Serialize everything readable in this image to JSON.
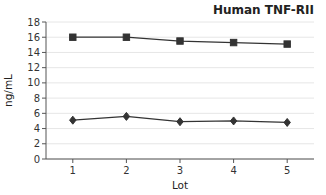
{
  "chart_data": {
    "type": "line",
    "title": "Human TNF-RII",
    "xlabel": "Lot",
    "ylabel": "ng/mL",
    "x": [
      1,
      2,
      3,
      4,
      5
    ],
    "series": [
      {
        "color": "#333333",
        "marker": "square",
        "values": [
          16.0,
          16.0,
          15.5,
          15.3,
          15.1
        ]
      },
      {
        "color": "#333333",
        "marker": "diamond",
        "values": [
          5.1,
          5.6,
          4.9,
          5.0,
          4.8
        ]
      }
    ],
    "xlim": [
      0.5,
      5.5
    ],
    "ylim": [
      0,
      18
    ],
    "xticks": [
      1,
      2,
      3,
      4,
      5
    ],
    "yticks": [
      0,
      2,
      4,
      6,
      8,
      10,
      12,
      14,
      16,
      18
    ]
  }
}
